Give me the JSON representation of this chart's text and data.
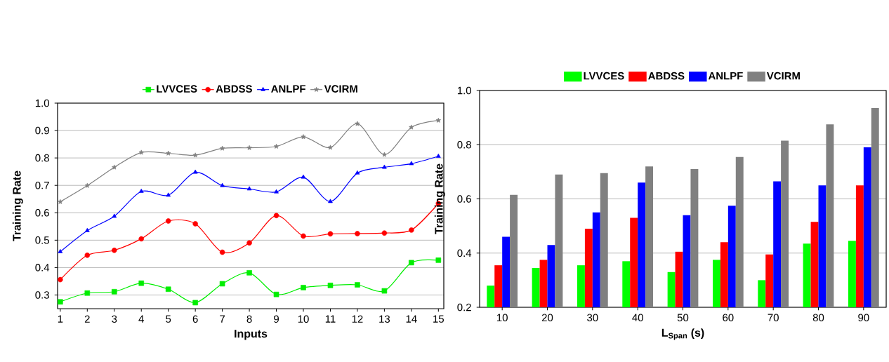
{
  "chart_data": [
    {
      "type": "line",
      "xlabel": "Inputs",
      "ylabel": "Training Rate",
      "x": [
        1,
        2,
        3,
        4,
        5,
        6,
        7,
        8,
        9,
        10,
        11,
        12,
        13,
        14,
        15
      ],
      "xlim": [
        0.9,
        15.2
      ],
      "xticks": [
        1,
        2,
        3,
        4,
        5,
        6,
        7,
        8,
        9,
        10,
        11,
        12,
        13,
        14,
        15
      ],
      "ylim": [
        0.25,
        1.0
      ],
      "yticks": [
        0.3,
        0.4,
        0.5,
        0.6,
        0.7,
        0.8,
        0.9,
        {
          "value": 1.0,
          "label": "1.0"
        }
      ],
      "grid": "y",
      "legend": "top",
      "series": [
        {
          "name": "LVVCES",
          "color": "#00ee00",
          "marker": "square",
          "values": [
            0.275,
            0.307,
            0.312,
            0.343,
            0.321,
            0.272,
            0.341,
            0.381,
            0.302,
            0.327,
            0.335,
            0.337,
            0.315,
            0.418,
            0.427
          ]
        },
        {
          "name": "ABDSS",
          "color": "#ff0000",
          "marker": "circle",
          "values": [
            0.356,
            0.445,
            0.463,
            0.505,
            0.57,
            0.56,
            0.456,
            0.49,
            0.59,
            0.515,
            0.523,
            0.524,
            0.526,
            0.537,
            0.634
          ]
        },
        {
          "name": "ANLPF",
          "color": "#0000ff",
          "marker": "triangle",
          "values": [
            0.458,
            0.535,
            0.587,
            0.678,
            0.664,
            0.748,
            0.699,
            0.687,
            0.676,
            0.73,
            0.641,
            0.745,
            0.766,
            0.779,
            0.806
          ]
        },
        {
          "name": "VCIRM",
          "color": "#808080",
          "marker": "star",
          "values": [
            0.64,
            0.699,
            0.766,
            0.82,
            0.817,
            0.81,
            0.835,
            0.837,
            0.842,
            0.877,
            0.838,
            0.925,
            0.812,
            0.912,
            0.937
          ]
        }
      ]
    },
    {
      "type": "bar",
      "xlabel": "L$_{Span}$ (s)",
      "ylabel": "Training Rate",
      "categories": [
        "10",
        "20",
        "30",
        "40",
        "50",
        "60",
        "70",
        "80",
        "90"
      ],
      "ylim": [
        0.2,
        1.0
      ],
      "yticks": [
        0.2,
        0.4,
        0.6,
        0.8,
        {
          "value": 1.0,
          "label": "1.0"
        }
      ],
      "grid": "y",
      "legend": "top",
      "series": [
        {
          "name": "LVVCES",
          "color": "#00ff00",
          "values": [
            0.28,
            0.345,
            0.355,
            0.37,
            0.33,
            0.375,
            0.3,
            0.435,
            0.445
          ]
        },
        {
          "name": "ABDSS",
          "color": "#ff0000",
          "values": [
            0.355,
            0.375,
            0.49,
            0.53,
            0.405,
            0.44,
            0.395,
            0.515,
            0.65
          ]
        },
        {
          "name": "ANLPF",
          "color": "#0000ff",
          "values": [
            0.46,
            0.43,
            0.55,
            0.66,
            0.54,
            0.575,
            0.665,
            0.65,
            0.79
          ]
        },
        {
          "name": "VCIRM",
          "color": "#808080",
          "values": [
            0.615,
            0.69,
            0.695,
            0.72,
            0.71,
            0.755,
            0.815,
            0.875,
            0.935
          ]
        }
      ]
    }
  ]
}
